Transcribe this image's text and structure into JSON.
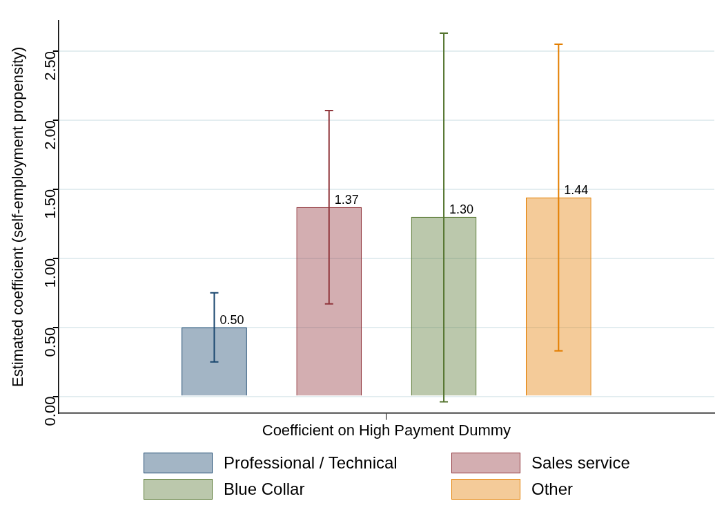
{
  "chart_data": {
    "type": "bar",
    "ylabel": "Estimated coefficient (self-employment propensity)",
    "categories": [
      "Coefficient on High Payment Dummy"
    ],
    "series": [
      {
        "name": "Professional / Technical",
        "color": "#1a476f",
        "values": [
          0.5
        ],
        "value_labels": [
          "0.50"
        ],
        "errors": [
          [
            0.25,
            0.75
          ]
        ]
      },
      {
        "name": "Sales service",
        "color": "#90353b",
        "values": [
          1.37
        ],
        "value_labels": [
          "1.37"
        ],
        "errors": [
          [
            0.67,
            2.07
          ]
        ]
      },
      {
        "name": "Blue Collar",
        "color": "#55752f",
        "values": [
          1.3
        ],
        "value_labels": [
          "1.30"
        ],
        "errors": [
          [
            -0.04,
            2.63
          ]
        ]
      },
      {
        "name": "Other",
        "color": "#e37e00",
        "values": [
          1.44
        ],
        "value_labels": [
          "1.44"
        ],
        "errors": [
          [
            0.33,
            2.55
          ]
        ]
      }
    ],
    "ylim": [
      -0.12,
      2.72
    ],
    "yticks": [
      {
        "value": 0,
        "label": "0.00"
      },
      {
        "value": 0.5,
        "label": "0.50"
      },
      {
        "value": 1,
        "label": "1.00"
      },
      {
        "value": 1.5,
        "label": "1.50"
      },
      {
        "value": 2,
        "label": "2.00"
      },
      {
        "value": 2.5,
        "label": "2.50"
      }
    ],
    "grid": "y",
    "legend": "bottom"
  }
}
